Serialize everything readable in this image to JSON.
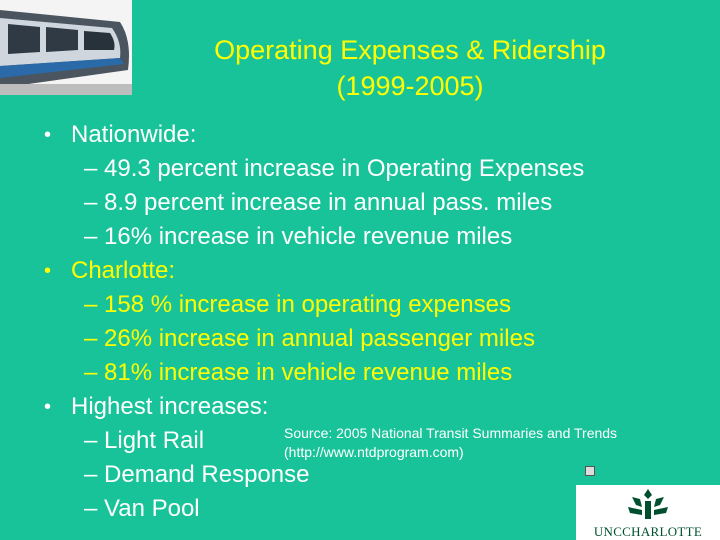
{
  "title": {
    "line1": "Operating Expenses & Ridership",
    "line2": "(1999-2005)"
  },
  "sections": [
    {
      "heading": "Nationwide:",
      "items": [
        "– 49.3 percent increase in Operating Expenses",
        "– 8.9 percent increase in annual pass. miles",
        "–  16% increase in vehicle revenue miles"
      ]
    },
    {
      "heading": "Charlotte:",
      "items": [
        "– 158 % increase in operating expenses",
        "– 26% increase in annual passenger miles",
        "– 81% increase in vehicle revenue miles"
      ]
    },
    {
      "heading": "Highest increases:",
      "items": [
        "– Light Rail",
        "– Demand Response",
        "– Van Pool"
      ]
    }
  ],
  "bullet_symbol": "•",
  "source": {
    "line1": "Source: 2005 National Transit Summaries and Trends",
    "line2": "(http://www.ntdprogram.com)"
  },
  "logo": {
    "text": "UNCCHARLOTTE"
  },
  "colors": {
    "background": "#19c39a",
    "title": "#ffff00",
    "body_text": "#ffffff",
    "highlight_text": "#ffff00",
    "logo_green": "#005030"
  },
  "icons": {
    "train": "light-rail-train-image",
    "logo": "unc-charlotte-crown-logo"
  }
}
